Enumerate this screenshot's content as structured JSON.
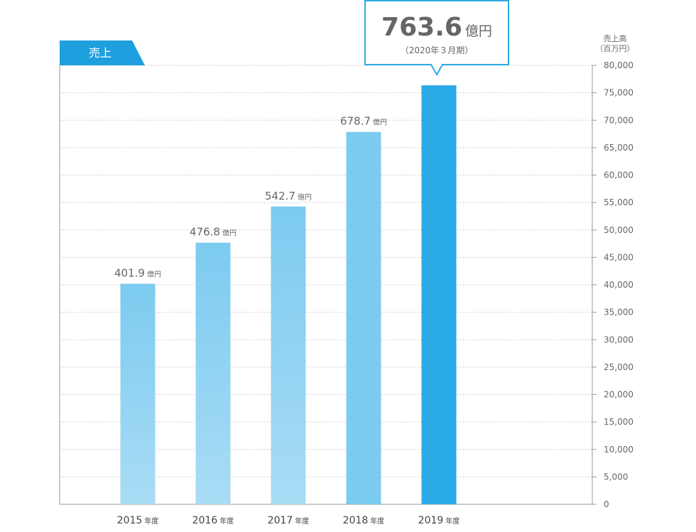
{
  "chart_data": {
    "type": "bar",
    "tab_label": "売上",
    "y_axis_title_line1": "売上高",
    "y_axis_title_line2": "（百万円）",
    "ylim": [
      0,
      80000
    ],
    "y_ticks": [
      "0",
      "5,000",
      "10,000",
      "15,000",
      "20,000",
      "25,000",
      "30,000",
      "35,000",
      "40,000",
      "45,000",
      "50,000",
      "55,000",
      "60,000",
      "65,000",
      "70,000",
      "75,000",
      "80,000"
    ],
    "categories": [
      {
        "year": "2015",
        "suffix": "年度"
      },
      {
        "year": "2016",
        "suffix": "年度"
      },
      {
        "year": "2017",
        "suffix": "年度"
      },
      {
        "year": "2018",
        "suffix": "年度"
      },
      {
        "year": "2019",
        "suffix": "年度"
      }
    ],
    "values": [
      40190,
      47680,
      54270,
      67870,
      76360
    ],
    "value_labels": [
      {
        "num": "401.9",
        "unit": "億円"
      },
      {
        "num": "476.8",
        "unit": "億円"
      },
      {
        "num": "542.7",
        "unit": "億円"
      },
      {
        "num": "678.7",
        "unit": "億円"
      }
    ],
    "highlight": {
      "num": "763.6",
      "unit": "億円",
      "sub": "（2020年３月期）"
    },
    "colors": {
      "bar_light": "#a9dcf5",
      "bar_mid": "#7ccbf0",
      "bar_highlight": "#2aaae6",
      "tab": "#1e9fde",
      "callout_border": "#2aaae6",
      "grid": "#bdbdbd",
      "axis": "#999999"
    },
    "grid": true
  }
}
